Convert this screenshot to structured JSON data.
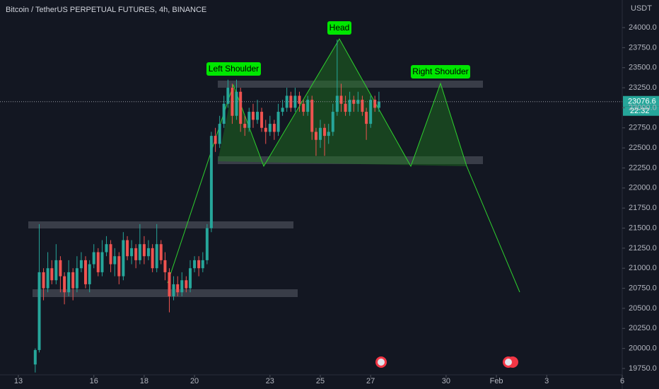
{
  "chart_data": {
    "type": "candlestick",
    "title": "Bitcoin / TetherUS PERPETUAL FUTURES, 4h, BINANCE",
    "y_axis_label": "USDT",
    "up_color": "#26a69a",
    "down_color": "#ef5350",
    "x": [
      13.67,
      13.83,
      14,
      14.17,
      14.33,
      14.5,
      14.67,
      14.83,
      15,
      15.17,
      15.33,
      15.5,
      15.67,
      15.83,
      16,
      16.17,
      16.33,
      16.5,
      16.67,
      16.83,
      17,
      17.17,
      17.33,
      17.5,
      17.67,
      17.83,
      18,
      18.17,
      18.33,
      18.5,
      18.67,
      18.83,
      19,
      19.17,
      19.33,
      19.5,
      19.67,
      19.83,
      20,
      20.17,
      20.33,
      20.5,
      20.67,
      20.83,
      21,
      21.17,
      21.33,
      21.5,
      21.67,
      21.83,
      22,
      22.17,
      22.33,
      22.5,
      22.67,
      22.83,
      23,
      23.17,
      23.33,
      23.5,
      23.67,
      23.83,
      24,
      24.17,
      24.33,
      24.5,
      24.67,
      24.83,
      25,
      25.17,
      25.33,
      25.5,
      25.67,
      25.83,
      26,
      26.17,
      26.33,
      26.5,
      26.67,
      26.83,
      27,
      27.17,
      27.33
    ],
    "open": [
      19800,
      19980,
      20950,
      20750,
      21000,
      20850,
      21100,
      20900,
      20700,
      20950,
      20750,
      21000,
      21100,
      20800,
      21050,
      21200,
      20950,
      21200,
      21300,
      21050,
      21150,
      20900,
      21350,
      21150,
      21250,
      21100,
      21300,
      21150,
      21250,
      21000,
      21300,
      21100,
      20950,
      20650,
      20800,
      20700,
      20850,
      20750,
      21000,
      21100,
      21000,
      21100,
      21500,
      22650,
      22550,
      22800,
      23050,
      23250,
      22900,
      23200,
      22800,
      22750,
      22950,
      22850,
      22950,
      22750,
      22700,
      22800,
      22700,
      22950,
      23000,
      23150,
      23000,
      23150,
      23050,
      22950,
      23100,
      22700,
      22600,
      22750,
      22650,
      22700,
      22950,
      23150,
      23050,
      22950,
      23100,
      23050,
      23100,
      22950,
      22800,
      23100,
      23000
    ],
    "high": [
      20000,
      21550,
      21000,
      21200,
      21100,
      21300,
      21150,
      20950,
      21100,
      21000,
      21150,
      21200,
      21150,
      21100,
      21300,
      21250,
      21350,
      21400,
      21350,
      21250,
      21200,
      21450,
      21400,
      21350,
      21300,
      21550,
      21400,
      21350,
      21300,
      21550,
      21350,
      21200,
      21000,
      20900,
      20900,
      20950,
      20900,
      21100,
      21150,
      21150,
      21200,
      21550,
      22700,
      22750,
      22900,
      23150,
      23350,
      23300,
      23350,
      23250,
      22900,
      23000,
      23050,
      23100,
      23000,
      22850,
      22900,
      22850,
      23050,
      23100,
      23250,
      23200,
      23250,
      23200,
      23100,
      23150,
      23150,
      22750,
      22850,
      22800,
      22800,
      23050,
      23850,
      23300,
      23150,
      23200,
      23150,
      23200,
      23150,
      23000,
      23150,
      23150,
      23200
    ],
    "low": [
      19700,
      19950,
      20600,
      20700,
      20800,
      20800,
      20700,
      20550,
      20650,
      20600,
      20700,
      20950,
      20750,
      20700,
      21000,
      20900,
      20900,
      21150,
      20950,
      20900,
      20800,
      20850,
      21100,
      21050,
      21000,
      21050,
      21050,
      21100,
      20950,
      20950,
      21050,
      20850,
      20450,
      20600,
      20650,
      20650,
      20700,
      20700,
      20950,
      20900,
      20950,
      21050,
      21450,
      22450,
      22500,
      22750,
      23000,
      22800,
      22850,
      22700,
      22650,
      22700,
      22750,
      22800,
      22700,
      22550,
      22650,
      22600,
      22650,
      22900,
      22950,
      22950,
      22950,
      22950,
      22900,
      22900,
      22600,
      22400,
      22500,
      22400,
      22550,
      22650,
      22900,
      22950,
      22900,
      22900,
      22950,
      22950,
      22900,
      22600,
      22750,
      22950,
      22950
    ],
    "close": [
      19980,
      20950,
      20750,
      21000,
      20850,
      21100,
      20900,
      20700,
      20950,
      20750,
      21000,
      21100,
      20800,
      21050,
      21200,
      20950,
      21200,
      21300,
      21050,
      21150,
      20900,
      21350,
      21150,
      21250,
      21100,
      21300,
      21150,
      21250,
      21000,
      21300,
      21100,
      20950,
      20650,
      20800,
      20700,
      20850,
      20750,
      21000,
      21100,
      21000,
      21100,
      21500,
      22650,
      22550,
      22800,
      23050,
      23250,
      22900,
      23200,
      22800,
      22750,
      22950,
      22850,
      22950,
      22750,
      22700,
      22800,
      22700,
      22950,
      23000,
      23150,
      23000,
      23150,
      23050,
      22950,
      23100,
      22700,
      22600,
      22750,
      22650,
      22700,
      22950,
      23150,
      23050,
      22950,
      23100,
      23050,
      23100,
      22950,
      22800,
      23100,
      23000,
      23076.6
    ],
    "last_price": 23076.6,
    "countdown": "22:32",
    "annotations": [
      "Left Shoulder",
      "Head",
      "Right Shoulder"
    ],
    "xlim": [
      12.27,
      37.0
    ],
    "xticks": [
      13,
      16,
      18,
      20,
      23,
      25,
      27,
      30,
      {
        "value": 32,
        "label": "Feb"
      },
      {
        "value": 34,
        "label": "3"
      },
      {
        "value": 37,
        "label": "6"
      }
    ],
    "ylim": [
      19670.6,
      24343.9
    ],
    "yticks": [
      {
        "value": 19750,
        "label": "19750.0"
      },
      {
        "value": 20000,
        "label": "20000.0"
      },
      {
        "value": 20250,
        "label": "20250.0"
      },
      {
        "value": 20500,
        "label": "20500.0"
      },
      {
        "value": 20750,
        "label": "20750.0"
      },
      {
        "value": 21000,
        "label": "21000.0"
      },
      {
        "value": 21250,
        "label": "21250.0"
      },
      {
        "value": 21500,
        "label": "21500.0"
      },
      {
        "value": 21750,
        "label": "21750.0"
      },
      {
        "value": 22000,
        "label": "22000.0"
      },
      {
        "value": 22250,
        "label": "22250.0"
      },
      {
        "value": 22500,
        "label": "22500.0"
      },
      {
        "value": 22750,
        "label": "22750.0"
      },
      {
        "value": 23000,
        "label": "23000.0"
      },
      {
        "value": 23250,
        "label": "23250.0"
      },
      {
        "value": 23500,
        "label": "23500.0"
      },
      {
        "value": 23750,
        "label": "23750.0"
      },
      {
        "value": 24000,
        "label": "24000.0"
      }
    ]
  }
}
